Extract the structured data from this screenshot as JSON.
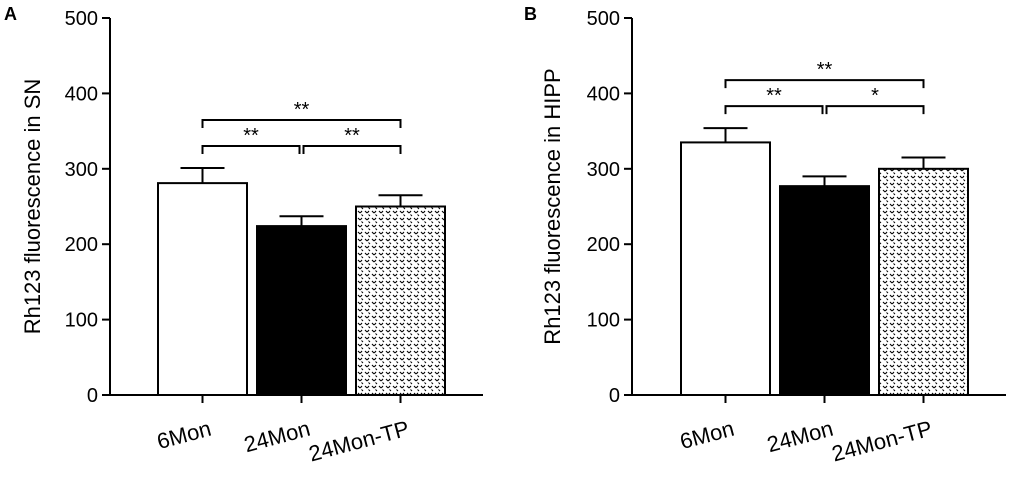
{
  "chart_data": [
    {
      "panel": "A",
      "type": "bar",
      "categories": [
        "6Mon",
        "24Mon",
        "24Mon-TP"
      ],
      "values": [
        281,
        224,
        250
      ],
      "errors": [
        20,
        13,
        15
      ],
      "fills": [
        "white",
        "black",
        "dotted"
      ],
      "ylabel": "Rh123 fluorescence in SN",
      "xlabel": "",
      "ylim": [
        0,
        500
      ],
      "yticks": [
        0,
        100,
        200,
        300,
        400,
        500
      ],
      "significance": [
        {
          "from": 0,
          "to": 1,
          "label": "**",
          "level": 1
        },
        {
          "from": 1,
          "to": 2,
          "label": "**",
          "level": 1
        },
        {
          "from": 0,
          "to": 2,
          "label": "**",
          "level": 2
        }
      ]
    },
    {
      "panel": "B",
      "type": "bar",
      "categories": [
        "6Mon",
        "24Mon",
        "24Mon-TP"
      ],
      "values": [
        335,
        277,
        300
      ],
      "errors": [
        19,
        13,
        15
      ],
      "fills": [
        "white",
        "black",
        "dotted"
      ],
      "ylabel": "Rh123 fluorescence in HIPP",
      "xlabel": "",
      "ylim": [
        0,
        500
      ],
      "yticks": [
        0,
        100,
        200,
        300,
        400,
        500
      ],
      "significance": [
        {
          "from": 0,
          "to": 1,
          "label": "**",
          "level": 1
        },
        {
          "from": 1,
          "to": 2,
          "label": "*",
          "level": 1
        },
        {
          "from": 0,
          "to": 2,
          "label": "**",
          "level": 2
        }
      ]
    }
  ]
}
